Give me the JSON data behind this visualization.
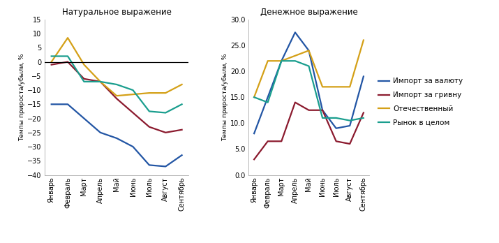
{
  "months": [
    "Январь",
    "Февраль",
    "Март",
    "Апрель",
    "Май",
    "Июнь",
    "Июль",
    "Август",
    "Сентябрь"
  ],
  "natural": {
    "import_val": [
      -15,
      -15,
      -20,
      -25,
      -27,
      -30,
      -36.5,
      -37,
      -33
    ],
    "import_grn": [
      -1,
      0,
      -6,
      -7,
      -13,
      -18,
      -23,
      -25,
      -24
    ],
    "domestic": [
      0,
      8.5,
      -1,
      -7,
      -12,
      -11.5,
      -11,
      -11,
      -8
    ],
    "market": [
      2,
      2,
      -7,
      -7,
      -8,
      -10,
      -17.5,
      -18,
      -15
    ]
  },
  "monetary": {
    "import_val": [
      8,
      null,
      22,
      27.5,
      24,
      12.5,
      9,
      9.5,
      19
    ],
    "import_grn": [
      3,
      6.5,
      6.5,
      14,
      12.5,
      12.5,
      6.5,
      6,
      12
    ],
    "domestic": [
      15,
      22,
      22,
      23,
      24,
      17,
      17,
      17,
      26
    ],
    "market": [
      15,
      14,
      22,
      22,
      21,
      11,
      11,
      10.5,
      11
    ]
  },
  "colors": {
    "import_val": "#2255a4",
    "import_grn": "#8b1a2e",
    "domestic": "#d4a017",
    "market": "#1a9e8e"
  },
  "legend_labels": [
    "Импорт за валюту",
    "Импорт за гривну",
    "Отечественный",
    "Рынок в целом"
  ],
  "title_natural": "Натуральное выражение",
  "title_monetary": "Денежное выражение",
  "ylabel": "Темпы прироста/убыли, %",
  "ylim_natural": [
    -40,
    15
  ],
  "ylim_monetary": [
    0,
    30
  ],
  "yticks_natural": [
    -40,
    -35,
    -30,
    -25,
    -20,
    -15,
    -10,
    -5,
    0,
    5,
    10,
    15
  ],
  "yticks_monetary": [
    0.0,
    5.0,
    10.0,
    15.0,
    20.0,
    25.0,
    30.0
  ],
  "figsize": [
    7.15,
    3.48
  ],
  "dpi": 100
}
